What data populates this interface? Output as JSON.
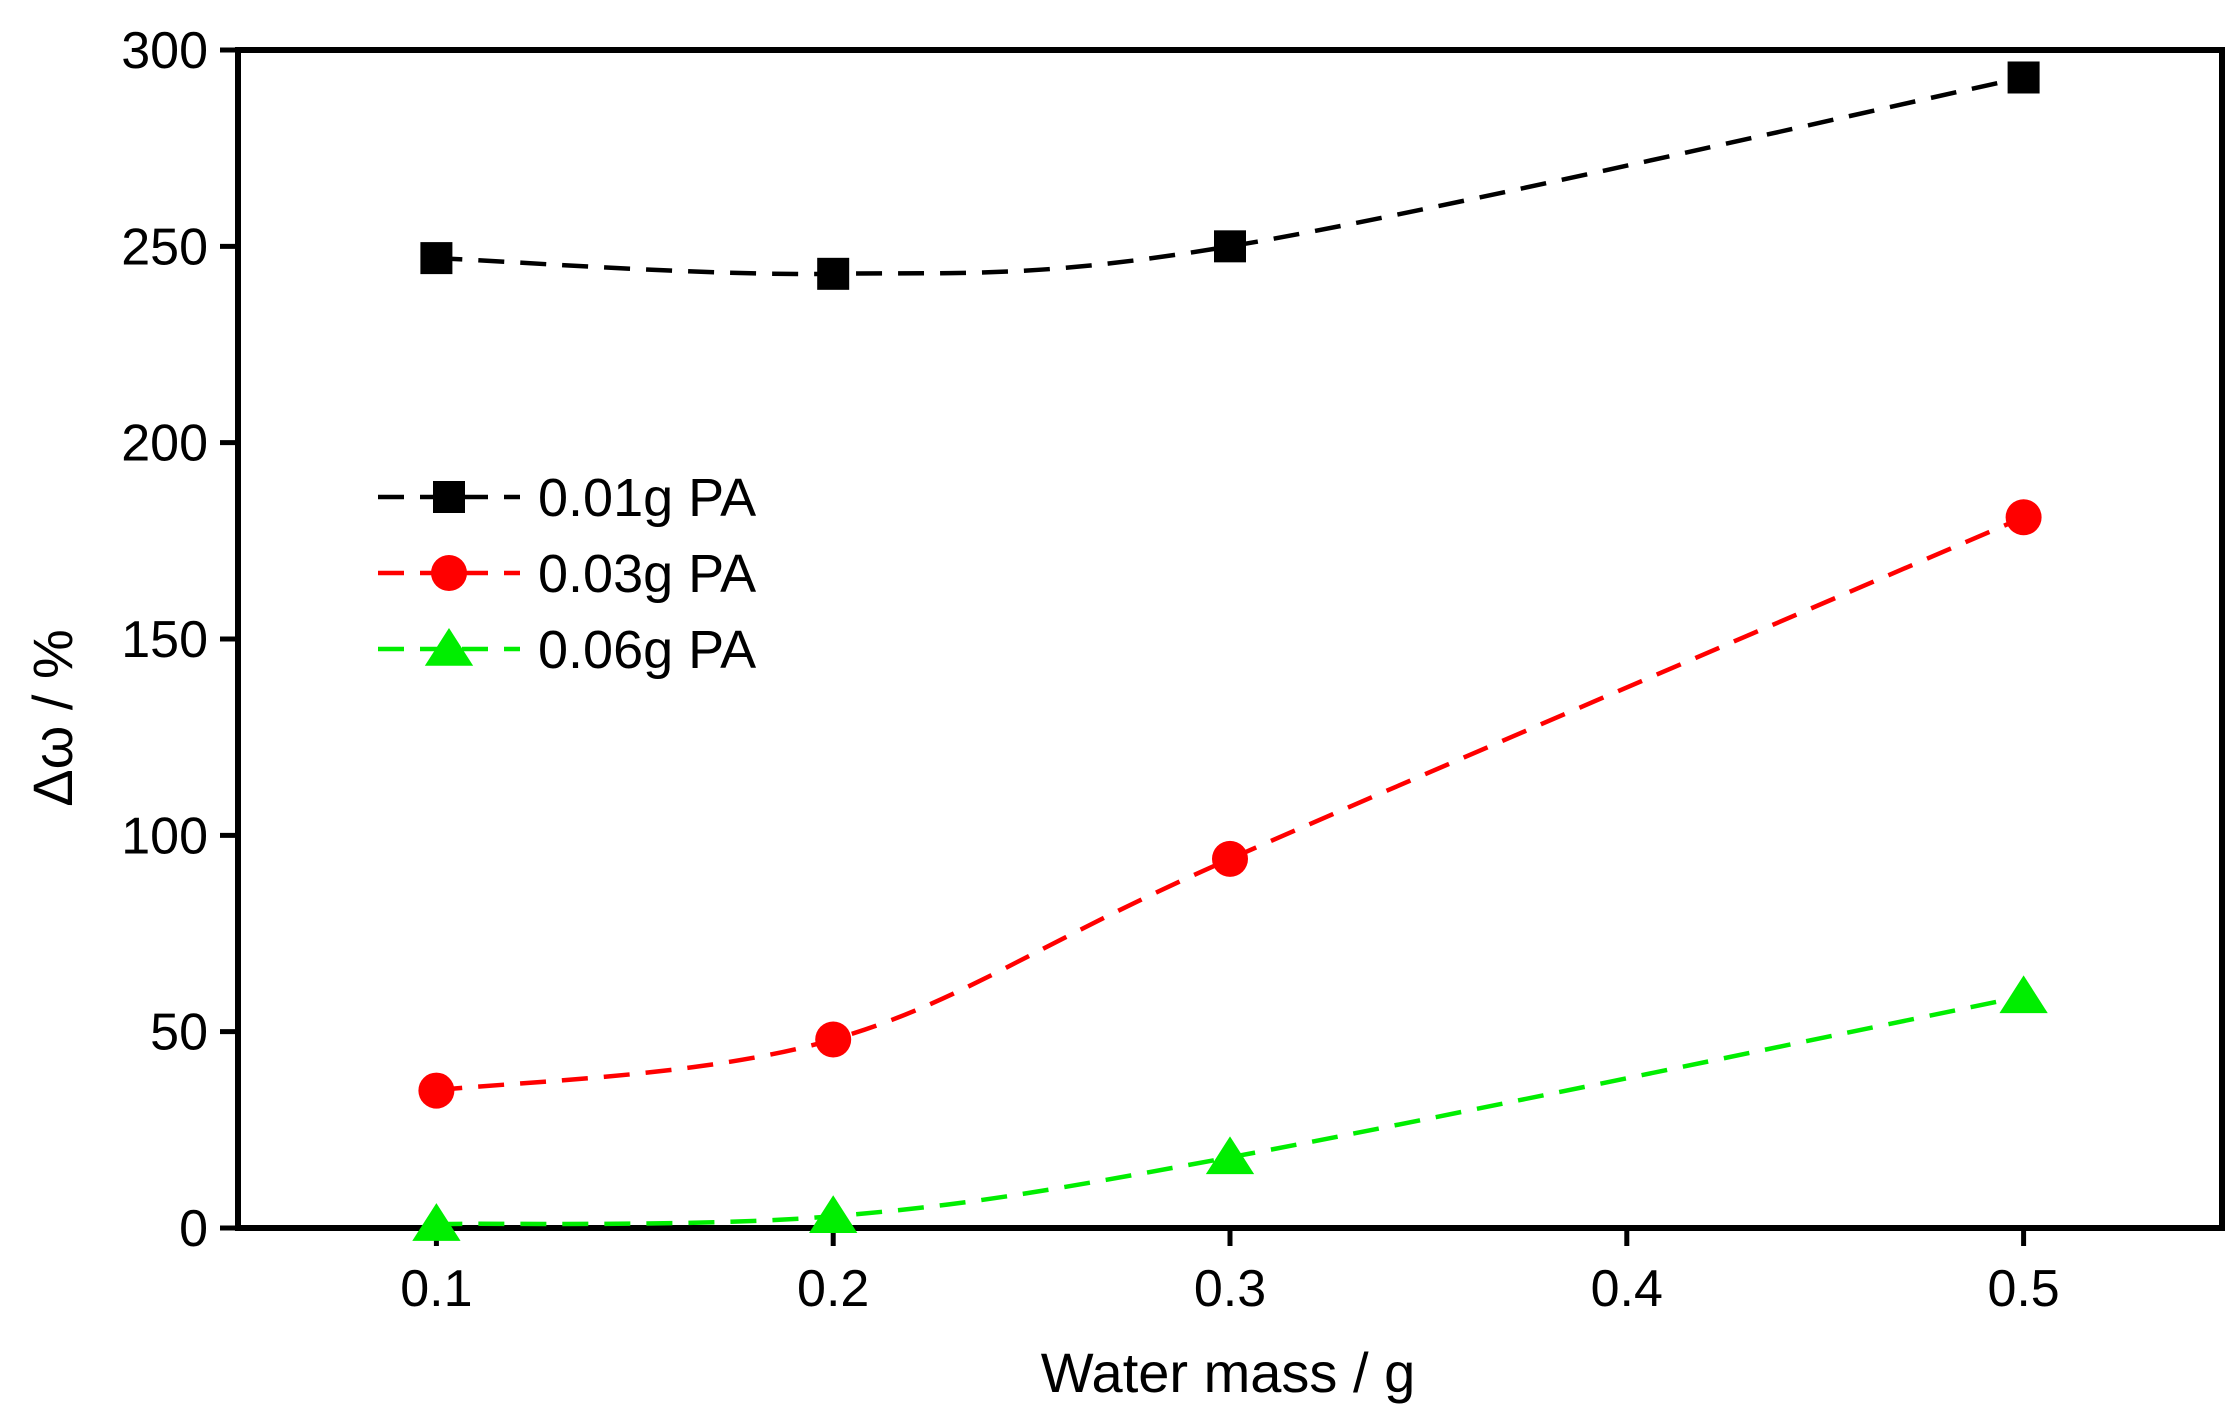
{
  "chart_data": {
    "type": "line",
    "title": "",
    "xlabel": "Water mass / g",
    "ylabel": "Δω / %",
    "xlim": [
      0.05,
      0.55
    ],
    "ylim": [
      0,
      300
    ],
    "xticks": [
      0.1,
      0.2,
      0.3,
      0.4,
      0.5
    ],
    "xtick_labels": [
      "0.1",
      "0.2",
      "0.3",
      "0.4",
      "0.5"
    ],
    "yticks": [
      0,
      50,
      100,
      150,
      200,
      250,
      300
    ],
    "ytick_labels": [
      "0",
      "50",
      "100",
      "150",
      "200",
      "250",
      "300"
    ],
    "grid": false,
    "legend_position": "middle-left",
    "series": [
      {
        "name": "0.01g PA",
        "marker": "square",
        "color": "#000000",
        "x": [
          0.1,
          0.2,
          0.3,
          0.5
        ],
        "y": [
          247,
          243,
          250,
          293
        ]
      },
      {
        "name": "0.03g PA",
        "marker": "circle",
        "color": "#ff0000",
        "x": [
          0.1,
          0.2,
          0.3,
          0.5
        ],
        "y": [
          35,
          48,
          94,
          181
        ]
      },
      {
        "name": "0.06g PA",
        "marker": "triangle",
        "color": "#00ee00",
        "x": [
          0.1,
          0.2,
          0.3,
          0.5
        ],
        "y": [
          1,
          3,
          18,
          59
        ]
      }
    ]
  }
}
